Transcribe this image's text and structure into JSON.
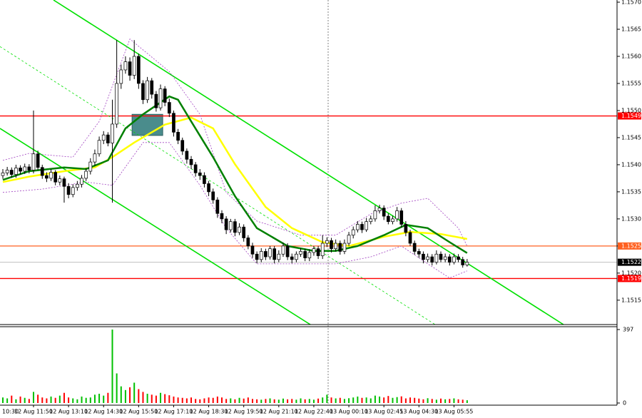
{
  "chart_data": {
    "type": "candlestick",
    "categories": [
      "10:30",
      null,
      null,
      null,
      null,
      null,
      null,
      "12 Aug 11:50",
      null,
      null,
      null,
      null,
      null,
      null,
      null,
      "12 Aug 13:10",
      null,
      null,
      null,
      null,
      null,
      null,
      null,
      "12 Aug 14:30",
      null,
      null,
      null,
      null,
      null,
      null,
      null,
      "12 Aug 15:50",
      null,
      null,
      null,
      null,
      null,
      null,
      null,
      "12 Aug 17:10",
      null,
      null,
      null,
      null,
      null,
      null,
      null,
      "12 Aug 18:30",
      null,
      null,
      null,
      null,
      null,
      null,
      null,
      "12 Aug 19:50",
      null,
      null,
      null,
      null,
      null,
      null,
      null,
      "12 Aug 21:10",
      null,
      null,
      null,
      null,
      null,
      null,
      null,
      "12 Aug 22:40",
      null,
      null,
      null,
      null,
      null,
      null,
      null,
      "13 Aug 00:10",
      null,
      null,
      null,
      null,
      null,
      null,
      null,
      "13 Aug 02:45",
      null,
      null,
      null,
      null,
      null,
      null,
      null,
      "13 Aug 04:30",
      null,
      null,
      null,
      null,
      null,
      null,
      null,
      "13 Aug 05:55",
      null,
      null,
      null
    ],
    "open": [
      1.1538,
      1.15385,
      1.1539,
      1.15382,
      1.15394,
      1.15388,
      1.15396,
      1.1539,
      1.1542,
      1.15395,
      1.1538,
      1.15375,
      1.15386,
      1.15368,
      1.15374,
      1.1536,
      1.15345,
      1.15358,
      1.15364,
      1.15375,
      1.15388,
      1.15405,
      1.1542,
      1.15445,
      1.15455,
      1.1544,
      1.15475,
      1.1555,
      1.15575,
      1.1559,
      1.15565,
      1.156,
      1.1555,
      1.1552,
      1.15555,
      1.1553,
      1.15505,
      1.1554,
      1.15515,
      1.15495,
      1.1546,
      1.15445,
      1.15425,
      1.1541,
      1.154,
      1.15385,
      1.1538,
      1.15365,
      1.1535,
      1.15335,
      1.1531,
      1.153,
      1.1528,
      1.15295,
      1.15275,
      1.15285,
      1.15265,
      1.1525,
      1.15235,
      1.15225,
      1.1524,
      1.1523,
      1.15245,
      1.15225,
      1.15235,
      1.1525,
      1.1523,
      1.15225,
      1.15235,
      1.1524,
      1.15228,
      1.15238,
      1.15245,
      1.15232,
      1.15255,
      1.1526,
      1.15245,
      1.15255,
      1.1524,
      1.15255,
      1.1527,
      1.1528,
      1.1529,
      1.1528,
      1.15295,
      1.153,
      1.15315,
      1.1532,
      1.15305,
      1.15295,
      1.153,
      1.15315,
      1.1529,
      1.15275,
      1.15255,
      1.1524,
      1.15235,
      1.15225,
      1.1523,
      1.1522,
      1.15235,
      1.15225,
      1.1523,
      1.1522,
      1.1523,
      1.15225,
      1.15215
    ],
    "high": [
      1.15392,
      1.15396,
      1.15395,
      1.154,
      1.15399,
      1.15402,
      1.15401,
      1.155,
      1.15426,
      1.154,
      1.15386,
      1.15392,
      1.1539,
      1.1538,
      1.15378,
      1.15366,
      1.15364,
      1.1537,
      1.15381,
      1.15394,
      1.15412,
      1.15428,
      1.15452,
      1.15462,
      1.1546,
      1.1552,
      1.1563,
      1.15585,
      1.156,
      1.15598,
      1.1563,
      1.15605,
      1.15556,
      1.15562,
      1.1556,
      1.15536,
      1.15548,
      1.15545,
      1.15522,
      1.155,
      1.15466,
      1.1545,
      1.1543,
      1.15416,
      1.15405,
      1.15392,
      1.15386,
      1.1537,
      1.15356,
      1.1534,
      1.15316,
      1.15305,
      1.153,
      1.153,
      1.15292,
      1.1529,
      1.1527,
      1.15256,
      1.1524,
      1.15246,
      1.15245,
      1.1525,
      1.1525,
      1.15242,
      1.15256,
      1.15255,
      1.15236,
      1.1524,
      1.15246,
      1.15245,
      1.15244,
      1.1525,
      1.1525,
      1.1527,
      1.15266,
      1.15265,
      1.15262,
      1.1526,
      1.15262,
      1.15276,
      1.15286,
      1.15296,
      1.15295,
      1.15302,
      1.15306,
      1.15325,
      1.15326,
      1.15325,
      1.1531,
      1.15306,
      1.15322,
      1.1532,
      1.15296,
      1.1528,
      1.1526,
      1.15245,
      1.1524,
      1.15236,
      1.15235,
      1.15242,
      1.1524,
      1.15236,
      1.15235,
      1.15236,
      1.15235,
      1.1523,
      1.15226
    ],
    "low": [
      1.15374,
      1.1538,
      1.15376,
      1.15376,
      1.15382,
      1.15383,
      1.15384,
      1.15384,
      1.1539,
      1.15374,
      1.15368,
      1.1537,
      1.15362,
      1.15362,
      1.1533,
      1.15338,
      1.1534,
      1.15352,
      1.15358,
      1.1537,
      1.15382,
      1.15398,
      1.15415,
      1.15438,
      1.15434,
      1.1533,
      1.15468,
      1.1554,
      1.15568,
      1.15555,
      1.15558,
      1.1554,
      1.15512,
      1.15514,
      1.15522,
      1.15498,
      1.155,
      1.15508,
      1.15488,
      1.15452,
      1.15438,
      1.15418,
      1.15402,
      1.15392,
      1.15378,
      1.15372,
      1.15358,
      1.15342,
      1.15328,
      1.15302,
      1.15292,
      1.15272,
      1.15275,
      1.15268,
      1.1527,
      1.15258,
      1.15244,
      1.15228,
      1.15218,
      1.1522,
      1.15224,
      1.15225,
      1.15218,
      1.1522,
      1.1523,
      1.15224,
      1.15218,
      1.1522,
      1.1523,
      1.15222,
      1.15222,
      1.15232,
      1.15226,
      1.15226,
      1.15248,
      1.15238,
      1.1524,
      1.15234,
      1.15235,
      1.1525,
      1.15264,
      1.15275,
      1.15274,
      1.15276,
      1.1529,
      1.15295,
      1.1531,
      1.15298,
      1.1529,
      1.1529,
      1.15295,
      1.15284,
      1.15268,
      1.1525,
      1.15234,
      1.15228,
      1.15218,
      1.1522,
      1.15214,
      1.15216,
      1.1522,
      1.1522,
      1.15214,
      1.15216,
      1.1522,
      1.1521,
      1.15212
    ],
    "close": [
      1.15385,
      1.1539,
      1.15382,
      1.15394,
      1.15388,
      1.15396,
      1.1539,
      1.1542,
      1.15395,
      1.1538,
      1.15375,
      1.15386,
      1.15368,
      1.15374,
      1.1536,
      1.15345,
      1.15358,
      1.15364,
      1.15375,
      1.15388,
      1.15405,
      1.1542,
      1.15445,
      1.15455,
      1.1544,
      1.15475,
      1.1555,
      1.15575,
      1.1559,
      1.15565,
      1.156,
      1.1555,
      1.1552,
      1.15555,
      1.1553,
      1.15505,
      1.1554,
      1.15515,
      1.15495,
      1.1546,
      1.15445,
      1.15425,
      1.1541,
      1.154,
      1.15385,
      1.1538,
      1.15365,
      1.1535,
      1.15335,
      1.1531,
      1.153,
      1.1528,
      1.15295,
      1.15275,
      1.15285,
      1.15265,
      1.1525,
      1.15235,
      1.15225,
      1.1524,
      1.1523,
      1.15245,
      1.15225,
      1.15235,
      1.1525,
      1.1523,
      1.15225,
      1.15235,
      1.1524,
      1.15228,
      1.15238,
      1.15245,
      1.15232,
      1.15255,
      1.1526,
      1.15245,
      1.15255,
      1.1524,
      1.15255,
      1.1527,
      1.1528,
      1.1529,
      1.1528,
      1.15295,
      1.153,
      1.15315,
      1.1532,
      1.15305,
      1.15295,
      1.153,
      1.15315,
      1.1529,
      1.15275,
      1.15255,
      1.1524,
      1.15235,
      1.15225,
      1.1523,
      1.1522,
      1.15235,
      1.15225,
      1.1523,
      1.1522,
      1.1523,
      1.15225,
      1.15215,
      1.1522
    ],
    "up_color": "#ffffff",
    "down_color": "#000000",
    "ylim": [
      1.15105,
      1.15704
    ],
    "yticks": [
      {
        "value": 1.157,
        "label": "1.1570"
      },
      1.1565,
      {
        "value": 1.156,
        "label": "1.1560"
      },
      1.1555,
      {
        "value": 1.155,
        "label": "1.1550"
      },
      1.1545,
      {
        "value": 1.154,
        "label": "1.1540"
      },
      1.1535,
      {
        "value": 1.153,
        "label": "1.1530"
      },
      1.1525,
      {
        "value": 1.152,
        "label": "1.1520"
      },
      1.1515
    ],
    "indicators": [
      {
        "color": "#a040c0",
        "dashed": true,
        "x": [
          0,
          6,
          16,
          22,
          29,
          38,
          45,
          51,
          58,
          68,
          76,
          84,
          91,
          97,
          104,
          106
        ],
        "values": [
          1.15408,
          1.15421,
          1.15414,
          1.1548,
          1.15632,
          1.15572,
          1.15493,
          1.15349,
          1.15296,
          1.1527,
          1.1527,
          1.15309,
          1.15329,
          1.15338,
          1.15283,
          1.1525
        ]
      },
      {
        "color": "#a040c0",
        "dashed": true,
        "x": [
          0,
          9,
          19,
          25,
          32,
          38,
          45,
          51,
          58,
          68,
          76,
          84,
          91,
          97,
          102,
          106
        ],
        "values": [
          1.15349,
          1.15355,
          1.15368,
          1.15362,
          1.15441,
          1.15441,
          1.15362,
          1.15283,
          1.15217,
          1.15217,
          1.15217,
          1.1523,
          1.1525,
          1.15217,
          1.15191,
          1.15204
        ]
      },
      {
        "color": "#ffff00",
        "dashed": false,
        "x": [
          0,
          6,
          14,
          21,
          25,
          30,
          37,
          43,
          48,
          53,
          60,
          66,
          73,
          79,
          87,
          93,
          100,
          106
        ],
        "values": [
          1.15368,
          1.15378,
          1.15388,
          1.15395,
          1.15414,
          1.15441,
          1.15474,
          1.15487,
          1.15467,
          1.15401,
          1.15322,
          1.15283,
          1.15257,
          1.1525,
          1.15267,
          1.15276,
          1.15272,
          1.15263
        ]
      },
      {
        "color": "#008000",
        "dashed": false,
        "x": [
          0,
          6,
          14,
          19,
          24,
          28,
          32,
          38,
          40,
          43,
          48,
          53,
          58,
          65,
          71,
          76,
          81,
          87,
          92,
          97,
          102,
          106
        ],
        "values": [
          1.15372,
          1.15388,
          1.15395,
          1.15392,
          1.15408,
          1.15467,
          1.15493,
          1.15526,
          1.1552,
          1.1548,
          1.15414,
          1.15342,
          1.15283,
          1.1525,
          1.15241,
          1.15241,
          1.1525,
          1.1527,
          1.15289,
          1.15283,
          1.15257,
          1.15237
        ]
      }
    ],
    "trendlines": [
      {
        "color": "#00e000",
        "dashed": false,
        "x": [
          11.56,
          128.0
        ],
        "values": [
          1.15704,
          1.15105
        ]
      },
      {
        "color": "#00e000",
        "dashed": false,
        "x": [
          -0.65,
          70.2
        ],
        "values": [
          1.15467,
          1.15105
        ]
      },
      {
        "color": "#00e000",
        "dashed": true,
        "x": [
          -0.65,
          98.7
        ],
        "values": [
          1.15618,
          1.15105
        ]
      }
    ],
    "zone": {
      "color": "#4a8c8c",
      "x": [
        29.5,
        36.5
      ],
      "values": [
        1.15493,
        1.15454
      ]
    },
    "levels": [
      {
        "value": 1.1549,
        "color": "#ff0000"
      },
      {
        "value": 1.1525,
        "color": "#ff6020"
      },
      {
        "value": 1.1522,
        "color": "#c0c0c0"
      },
      {
        "value": 1.1519,
        "color": "#ff0000"
      }
    ],
    "volume": {
      "values": [
        30,
        25,
        40,
        20,
        35,
        28,
        22,
        60,
        45,
        30,
        25,
        35,
        28,
        40,
        55,
        30,
        25,
        20,
        35,
        28,
        30,
        45,
        50,
        40,
        55,
        397,
        160,
        90,
        70,
        85,
        110,
        75,
        60,
        50,
        45,
        40,
        55,
        48,
        42,
        35,
        30,
        28,
        25,
        30,
        22,
        20,
        25,
        30,
        28,
        35,
        30,
        22,
        25,
        20,
        28,
        24,
        30,
        22,
        20,
        18,
        22,
        25,
        20,
        18,
        24,
        20,
        22,
        18,
        25,
        20,
        22,
        18,
        24,
        30,
        45,
        30,
        25,
        28,
        22,
        26,
        30,
        35,
        28,
        30,
        25,
        40,
        35,
        30,
        38,
        28,
        32,
        36,
        25,
        30,
        28,
        24,
        20,
        26,
        22,
        18,
        24,
        20,
        22,
        25,
        20,
        18,
        15
      ],
      "ylim": [
        0,
        397
      ],
      "yticks": [
        397,
        0
      ],
      "up_color": "#00c000",
      "down_color": "#ff0000"
    }
  }
}
